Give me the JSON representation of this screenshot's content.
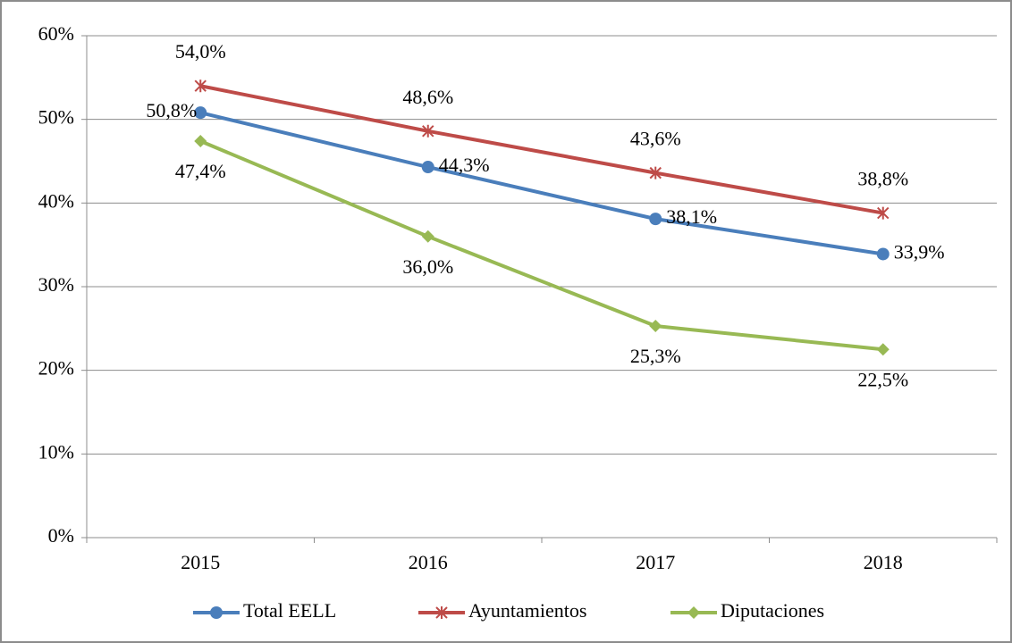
{
  "chart_data": {
    "type": "line",
    "categories": [
      "2015",
      "2016",
      "2017",
      "2018"
    ],
    "series": [
      {
        "name": "Total EELL",
        "color": "#4a7ebb",
        "marker": "circle",
        "values": [
          50.8,
          44.3,
          38.1,
          33.9
        ],
        "value_labels": [
          "50,8%",
          "44,3%",
          "38,1%",
          "33,9%"
        ]
      },
      {
        "name": "Ayuntamientos",
        "color": "#be4b48",
        "marker": "star",
        "values": [
          54.0,
          48.6,
          43.6,
          38.8
        ],
        "value_labels": [
          "54,0%",
          "48,6%",
          "43,6%",
          "38,8%"
        ]
      },
      {
        "name": "Diputaciones",
        "color": "#98b954",
        "marker": "diamond",
        "values": [
          47.4,
          36.0,
          25.3,
          22.5
        ],
        "value_labels": [
          "47,4%",
          "36,0%",
          "25,3%",
          "22,5%"
        ]
      }
    ],
    "ylim": [
      0,
      60
    ],
    "yticks": [
      {
        "value": 0,
        "label": "0%"
      },
      {
        "value": 10,
        "label": "10%"
      },
      {
        "value": 20,
        "label": "20%"
      },
      {
        "value": 30,
        "label": "30%"
      },
      {
        "value": 40,
        "label": "40%"
      },
      {
        "value": 50,
        "label": "50%"
      },
      {
        "value": 60,
        "label": "60%"
      }
    ],
    "grid": true,
    "legend": "bottom"
  }
}
